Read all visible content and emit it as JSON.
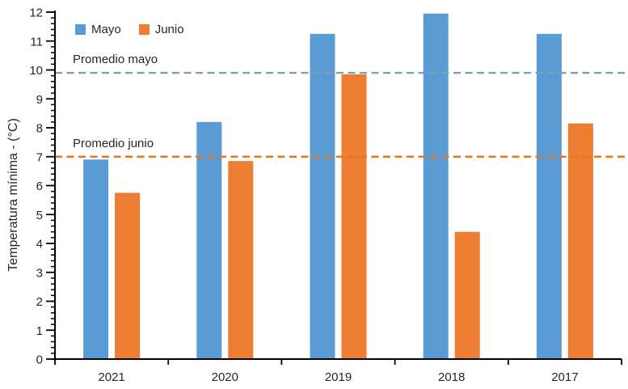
{
  "chart_data": {
    "type": "bar",
    "title": "",
    "xlabel": "",
    "ylabel": "Temperatura mínima - (°C)",
    "ylim": [
      0,
      12
    ],
    "y_major_step": 1,
    "y_minor_step": 0.2,
    "grid": false,
    "legend_position": "top-left",
    "categories": [
      "2021",
      "2020",
      "2019",
      "2018",
      "2017"
    ],
    "series": [
      {
        "name": "Mayo",
        "color": "#5B9BD5",
        "values": [
          6.9,
          8.2,
          11.25,
          11.95,
          11.25
        ]
      },
      {
        "name": "Junio",
        "color": "#ED7D31",
        "values": [
          5.75,
          6.85,
          9.85,
          4.4,
          8.15
        ]
      }
    ],
    "reference_lines": [
      {
        "label": "Promedio mayo",
        "value": 9.9,
        "color": "#7D9EB5",
        "style": "dashed"
      },
      {
        "label": "Promedio junio",
        "value": 7.0,
        "color": "#E8761D",
        "style": "dashed"
      }
    ],
    "axis_color": "#000000",
    "text_color": "#262626"
  }
}
